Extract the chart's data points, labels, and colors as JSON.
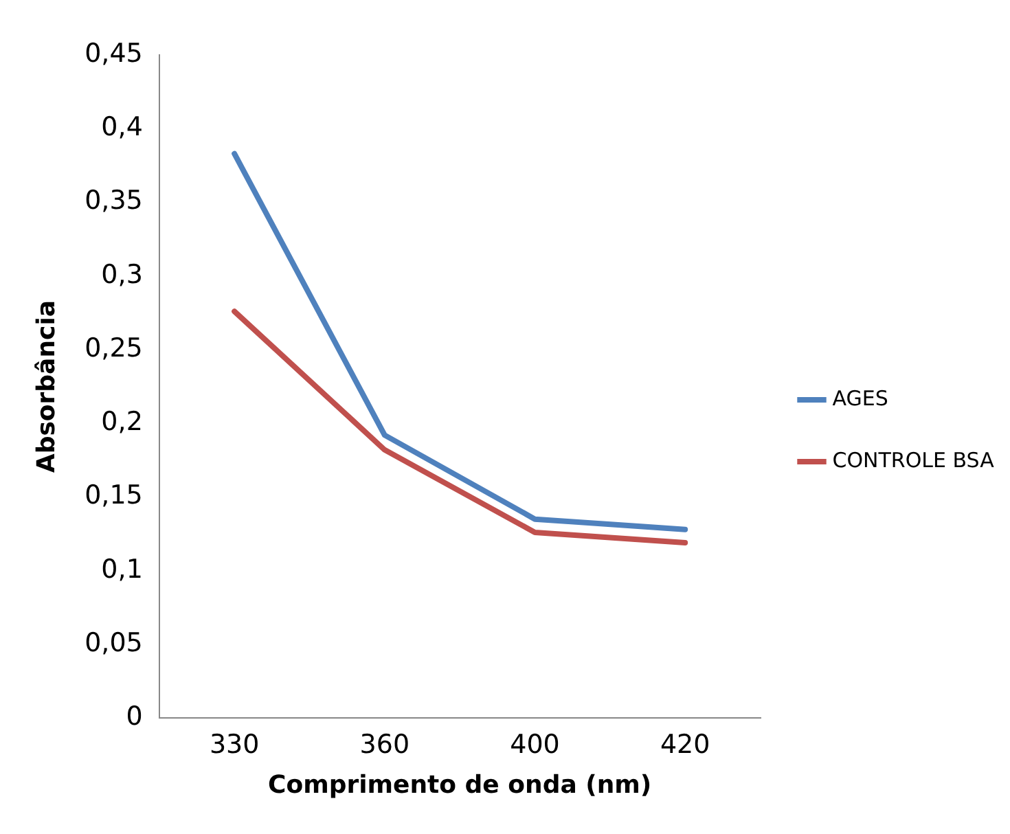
{
  "chart_data": {
    "type": "line",
    "xlabel": "Comprimento de onda (nm)",
    "ylabel": "Absorbância",
    "categories": [
      "330",
      "360",
      "400",
      "420"
    ],
    "series": [
      {
        "name": "AGES",
        "color": "#4f81bd",
        "values": [
          0.383,
          0.192,
          0.135,
          0.128
        ]
      },
      {
        "name": "CONTROLE BSA",
        "color": "#c0504d",
        "values": [
          0.276,
          0.182,
          0.126,
          0.119
        ]
      }
    ],
    "ylim": [
      0,
      0.45
    ],
    "yticks": [
      {
        "value": 0,
        "label": "0"
      },
      {
        "value": 0.05,
        "label": "0,05"
      },
      {
        "value": 0.1,
        "label": "0,1"
      },
      {
        "value": 0.15,
        "label": "0,15"
      },
      {
        "value": 0.2,
        "label": "0,2"
      },
      {
        "value": 0.25,
        "label": "0,25"
      },
      {
        "value": 0.3,
        "label": "0,3"
      },
      {
        "value": 0.35,
        "label": "0,35"
      },
      {
        "value": 0.4,
        "label": "0,4"
      },
      {
        "value": 0.45,
        "label": "0,45"
      }
    ],
    "grid": false,
    "legend": "right",
    "marker": "none",
    "line_style": "solid"
  }
}
